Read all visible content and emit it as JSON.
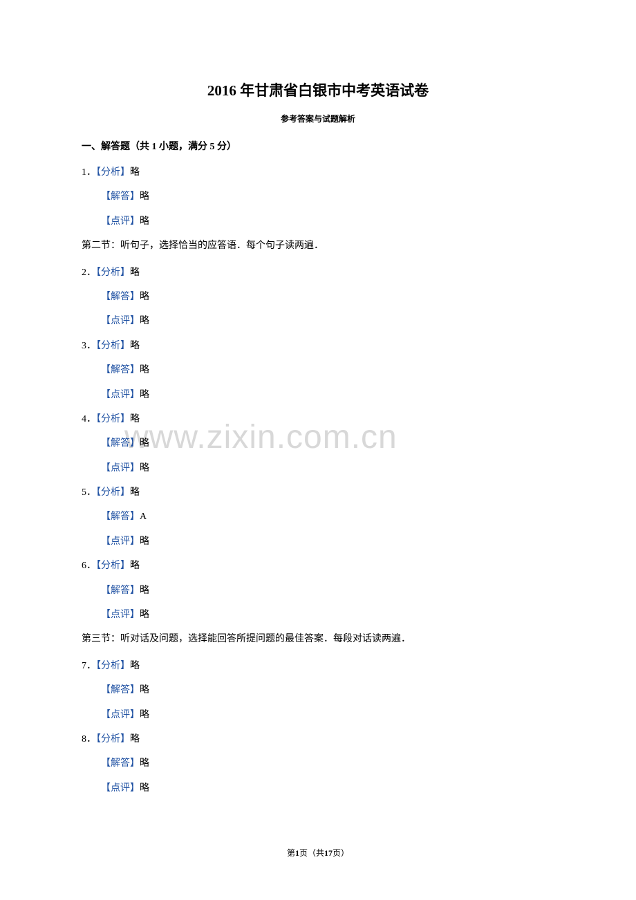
{
  "title": "2016 年甘肃省白银市中考英语试卷",
  "subtitle": "参考答案与试题解析",
  "watermark": "www.zixin.com.cn",
  "labels": {
    "analysis": "【分析】",
    "answer": "【解答】",
    "comment": "【点评】"
  },
  "section1": {
    "header": "一、解答题（共 1 小题，满分 5 分）"
  },
  "section2": {
    "header": "第二节：听句子，选择恰当的应答语．每个句子读两遍．"
  },
  "section3": {
    "header": "第三节：听对话及问题，选择能回答所提问题的最佳答案．每段对话读两遍．"
  },
  "questions": [
    {
      "num": "1．",
      "analysis": "略",
      "answer": "略",
      "comment": "略"
    },
    {
      "num": "2．",
      "analysis": "略",
      "answer": "略",
      "comment": "略"
    },
    {
      "num": "3．",
      "analysis": "略",
      "answer": "略",
      "comment": "略"
    },
    {
      "num": "4．",
      "analysis": "略",
      "answer": "略",
      "comment": "略"
    },
    {
      "num": "5．",
      "analysis": "略",
      "answer": "A",
      "comment": "略"
    },
    {
      "num": "6．",
      "analysis": "略",
      "answer": "略",
      "comment": "略"
    },
    {
      "num": "7．",
      "analysis": "略",
      "answer": "略",
      "comment": "略"
    },
    {
      "num": "8．",
      "analysis": "略",
      "answer": "略",
      "comment": "略"
    }
  ],
  "footer": {
    "prefix": "第",
    "current": "1",
    "middle": "页（共",
    "total": "17",
    "suffix": "页）"
  }
}
